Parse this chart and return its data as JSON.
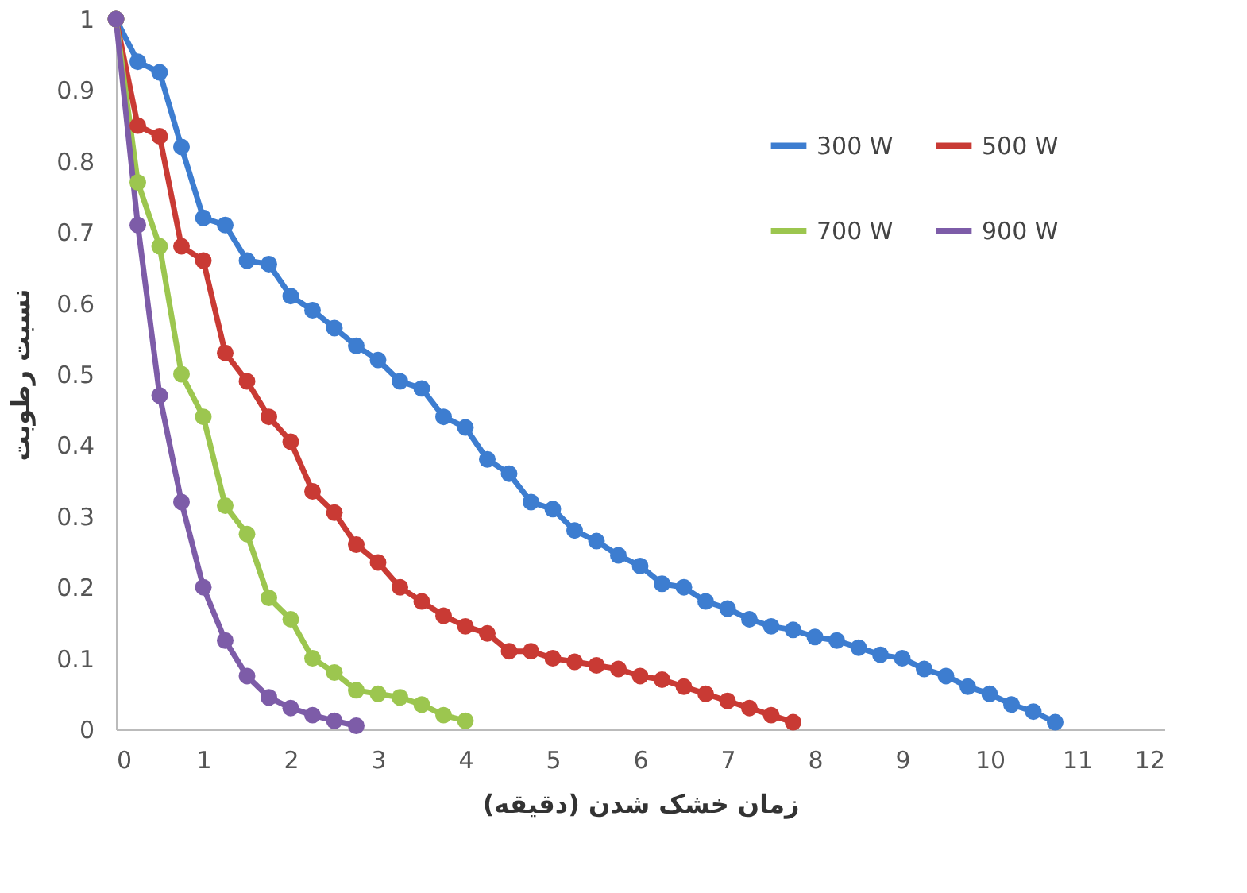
{
  "chart_data": {
    "type": "line",
    "xlabel": "زمان خشک شدن (دقیقه)",
    "ylabel": "نسبت رطوبت",
    "xlim": [
      0,
      12
    ],
    "xticks": [
      0,
      1,
      2,
      3,
      4,
      5,
      6,
      7,
      8,
      9,
      10,
      11,
      12
    ],
    "ylim": [
      0,
      1
    ],
    "yticks": [
      0,
      0.1,
      0.2,
      0.3,
      0.4,
      0.5,
      0.6,
      0.7,
      0.8,
      0.9,
      1
    ],
    "grid": false,
    "legend": "top right",
    "marker": "circle",
    "line_style": "solid",
    "series": [
      {
        "name": "300 W",
        "color": "#3d7dd0",
        "x": [
          0,
          0.25,
          0.5,
          0.75,
          1,
          1.25,
          1.5,
          1.75,
          2,
          2.25,
          2.5,
          2.75,
          3,
          3.25,
          3.5,
          3.75,
          4,
          4.25,
          4.5,
          4.75,
          5,
          5.25,
          5.5,
          5.75,
          6,
          6.25,
          6.5,
          6.75,
          7,
          7.25,
          7.5,
          7.75,
          8,
          8.25,
          8.5,
          8.75,
          9,
          9.25,
          9.5,
          9.75,
          10,
          10.25,
          10.5,
          10.75
        ],
        "values": [
          1,
          0.94,
          0.925,
          0.82,
          0.72,
          0.71,
          0.66,
          0.655,
          0.61,
          0.59,
          0.565,
          0.54,
          0.52,
          0.49,
          0.48,
          0.44,
          0.425,
          0.38,
          0.36,
          0.32,
          0.31,
          0.28,
          0.265,
          0.245,
          0.23,
          0.205,
          0.2,
          0.18,
          0.17,
          0.155,
          0.145,
          0.14,
          0.13,
          0.125,
          0.115,
          0.105,
          0.1,
          0.085,
          0.075,
          0.06,
          0.05,
          0.035,
          0.025,
          0.01
        ]
      },
      {
        "name": "500 W",
        "color": "#c93a34",
        "x": [
          0,
          0.25,
          0.5,
          0.75,
          1,
          1.25,
          1.5,
          1.75,
          2,
          2.25,
          2.5,
          2.75,
          3,
          3.25,
          3.5,
          3.75,
          4,
          4.25,
          4.5,
          4.75,
          5,
          5.25,
          5.5,
          5.75,
          6,
          6.25,
          6.5,
          6.75,
          7,
          7.25,
          7.5,
          7.75
        ],
        "values": [
          1,
          0.85,
          0.835,
          0.68,
          0.66,
          0.53,
          0.49,
          0.44,
          0.405,
          0.335,
          0.305,
          0.26,
          0.235,
          0.2,
          0.18,
          0.16,
          0.145,
          0.135,
          0.11,
          0.11,
          0.1,
          0.095,
          0.09,
          0.085,
          0.075,
          0.07,
          0.06,
          0.05,
          0.04,
          0.03,
          0.02,
          0.01
        ]
      },
      {
        "name": "700 W",
        "color": "#9cc64f",
        "x": [
          0,
          0.25,
          0.5,
          0.75,
          1,
          1.25,
          1.5,
          1.75,
          2,
          2.25,
          2.5,
          2.75,
          3,
          3.25,
          3.5,
          3.75,
          4
        ],
        "values": [
          1,
          0.77,
          0.68,
          0.5,
          0.44,
          0.315,
          0.275,
          0.185,
          0.155,
          0.1,
          0.08,
          0.055,
          0.05,
          0.045,
          0.035,
          0.02,
          0.012
        ]
      },
      {
        "name": "900 W",
        "color": "#7d5ca8",
        "x": [
          0,
          0.25,
          0.5,
          0.75,
          1,
          1.25,
          1.5,
          1.75,
          2,
          2.25,
          2.5,
          2.75
        ],
        "values": [
          1,
          0.71,
          0.47,
          0.32,
          0.2,
          0.125,
          0.075,
          0.045,
          0.03,
          0.02,
          0.012,
          0.005
        ]
      }
    ]
  }
}
